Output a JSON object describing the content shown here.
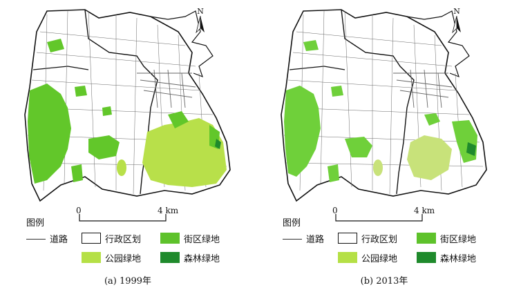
{
  "panels": [
    {
      "id": "a",
      "caption": "(a) 1999年",
      "park_color": "#b8e04a",
      "street_color": "#62c72a"
    },
    {
      "id": "b",
      "caption": "(b) 2013年",
      "park_color": "#c8e27a",
      "street_color": "#6fd03a"
    }
  ],
  "north_label": "N",
  "legend": {
    "title": "图例",
    "scale_start": "0",
    "scale_end": "4 km",
    "road_label": "道路",
    "district_label": "行政区划",
    "street_green_label": "街区绿地",
    "park_green_label": "公园绿地",
    "forest_green_label": "森林绿地"
  },
  "colors": {
    "road": "#333333",
    "street_green": "#5ec22b",
    "park_green": "#b5e046",
    "forest_green": "#1f8a2c"
  }
}
